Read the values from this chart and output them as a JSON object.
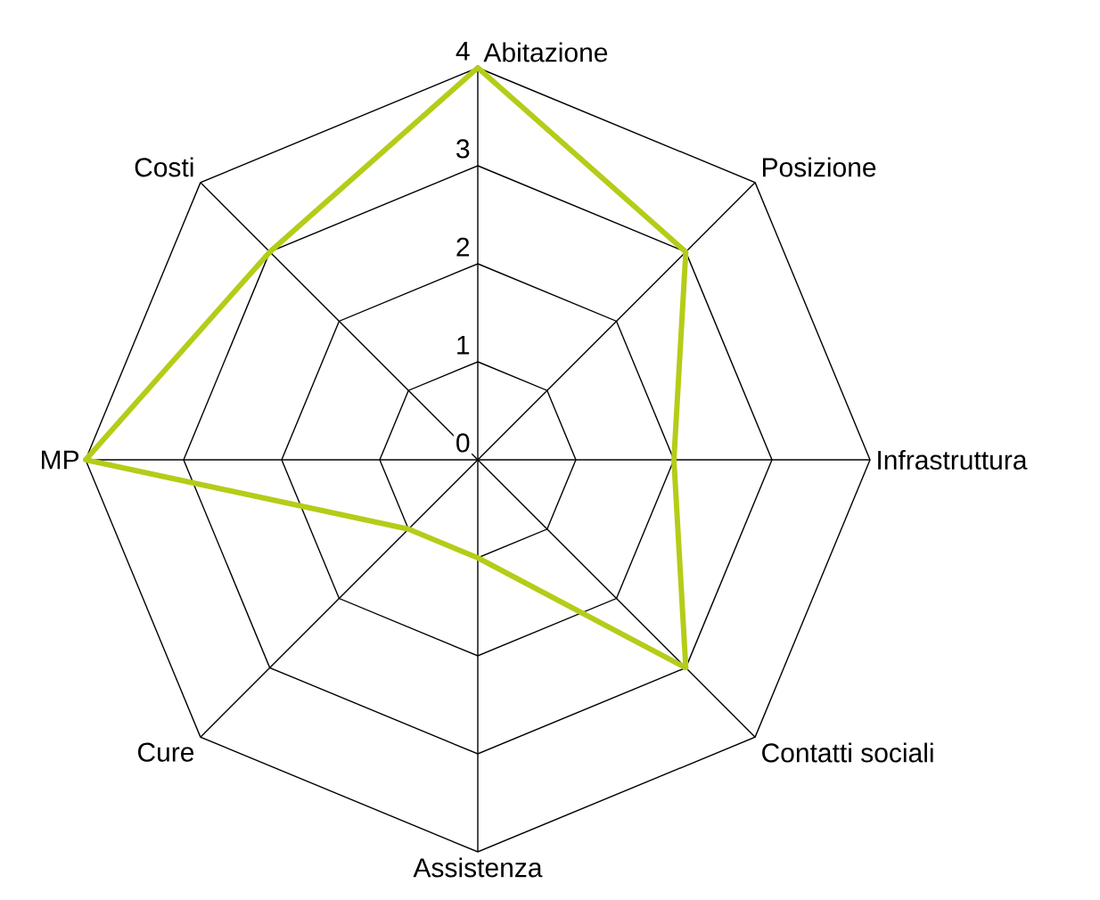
{
  "chart_data": {
    "type": "radar",
    "categories": [
      "Abitazione",
      "Posizione",
      "Infrastruttura",
      "Contatti sociali",
      "Assistenza",
      "Cure",
      "MP",
      "Costi"
    ],
    "ylim": [
      0,
      4
    ],
    "yticks": [
      0,
      1,
      2,
      3,
      4
    ],
    "grid": true,
    "series": [
      {
        "color": "#b5cc18",
        "values": [
          4,
          3,
          2,
          3,
          1,
          1,
          4,
          3
        ]
      }
    ]
  }
}
